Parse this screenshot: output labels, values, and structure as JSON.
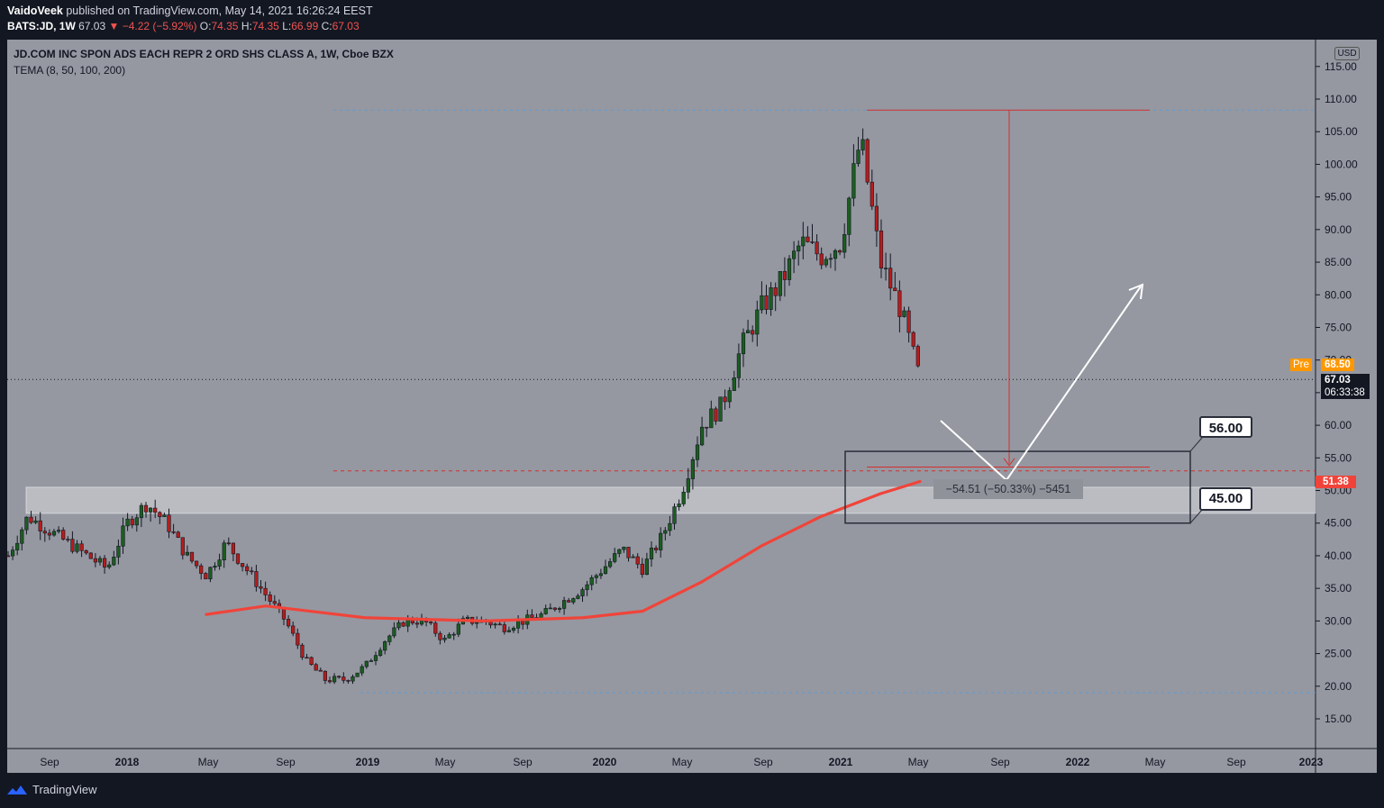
{
  "header": {
    "author": "VaidoVeek",
    "published_text": "published on TradingView.com, May 14, 2021 16:26:24 EEST",
    "symbol": "BATS:JD, 1W",
    "last": "67.03",
    "change": "▼ −4.22 (−5.92%)",
    "ohlc": {
      "o_label": "O:",
      "o": "74.35",
      "h_label": "H:",
      "h": "74.35",
      "l_label": "L:",
      "l": "66.99",
      "c_label": "C:",
      "c": "67.03"
    }
  },
  "legend": {
    "title": "JD.COM INC SPON ADS EACH REPR 2 ORD SHS CLASS A, 1W, Cboe BZX",
    "indicator": "TEMA (8, 50, 100, 200)"
  },
  "currency": "USD",
  "price_labels": {
    "pre_tag": "Pre",
    "pre_value": "68.50",
    "last_value": "67.03",
    "countdown": "06:33:38",
    "tema_value": "51.38"
  },
  "annotations": {
    "target_high": "56.00",
    "target_low": "45.00",
    "measure": "−54.51 (−50.33%) −5451"
  },
  "footer": {
    "brand": "TradingView"
  },
  "colors": {
    "background": "#9598a1",
    "up": "#26a69a",
    "down": "#ef5350",
    "tema": "#f0443a",
    "pre": "#ff9800",
    "frame": "#131722"
  },
  "chart_data": {
    "type": "candlestick",
    "timeframe": "1W",
    "ylim": [
      10,
      118
    ],
    "y_ticks": [
      15,
      20,
      25,
      30,
      35,
      40,
      45,
      50,
      55,
      60,
      65,
      70,
      75,
      80,
      85,
      90,
      95,
      100,
      105,
      110,
      115
    ],
    "x_ticks": [
      "Sep",
      "2018",
      "May",
      "Sep",
      "2019",
      "May",
      "Sep",
      "2020",
      "May",
      "Sep",
      "2021",
      "May",
      "Sep",
      "2022",
      "May",
      "Sep",
      "2023"
    ],
    "price_path": [
      [
        "2017-07",
        40
      ],
      [
        "2017-08",
        46
      ],
      [
        "2017-10",
        42
      ],
      [
        "2017-12",
        38
      ],
      [
        "2018-01",
        45
      ],
      [
        "2018-02",
        48
      ],
      [
        "2018-03",
        45
      ],
      [
        "2018-04",
        40
      ],
      [
        "2018-05",
        37
      ],
      [
        "2018-06",
        42
      ],
      [
        "2018-07",
        38
      ],
      [
        "2018-08",
        34
      ],
      [
        "2018-09",
        30
      ],
      [
        "2018-10",
        24
      ],
      [
        "2018-11",
        21
      ],
      [
        "2018-12",
        21
      ],
      [
        "2019-01",
        23
      ],
      [
        "2019-02",
        27
      ],
      [
        "2019-03",
        30
      ],
      [
        "2019-04",
        30
      ],
      [
        "2019-05",
        27
      ],
      [
        "2019-06",
        30
      ],
      [
        "2019-07",
        30
      ],
      [
        "2019-08",
        29
      ],
      [
        "2019-09",
        30
      ],
      [
        "2019-10",
        31
      ],
      [
        "2019-11",
        33
      ],
      [
        "2019-12",
        35
      ],
      [
        "2020-01",
        38
      ],
      [
        "2020-02",
        41
      ],
      [
        "2020-03",
        38
      ],
      [
        "2020-04",
        43
      ],
      [
        "2020-05",
        50
      ],
      [
        "2020-06",
        60
      ],
      [
        "2020-07",
        63
      ],
      [
        "2020-08",
        72
      ],
      [
        "2020-09",
        78
      ],
      [
        "2020-10",
        82
      ],
      [
        "2020-11",
        88
      ],
      [
        "2020-12",
        86
      ],
      [
        "2021-01",
        88
      ],
      [
        "2021-02",
        104
      ],
      [
        "2021-03",
        85
      ],
      [
        "2021-04",
        78
      ],
      [
        "2021-05",
        67
      ]
    ],
    "tema_200": [
      [
        "2018-05",
        31
      ],
      [
        "2018-08",
        32.3
      ],
      [
        "2019-01",
        30.5
      ],
      [
        "2019-07",
        30
      ],
      [
        "2019-12",
        30.5
      ],
      [
        "2020-03",
        31.5
      ],
      [
        "2020-06",
        36
      ],
      [
        "2020-09",
        41.5
      ],
      [
        "2020-12",
        46
      ],
      [
        "2021-03",
        49.5
      ],
      [
        "2021-05",
        51.38
      ]
    ],
    "levels": {
      "all_time_high": 108.3,
      "projection_low": 53,
      "low_2018": 19,
      "support_zone": [
        46.5,
        50.5
      ],
      "box": [
        45,
        56
      ]
    }
  }
}
